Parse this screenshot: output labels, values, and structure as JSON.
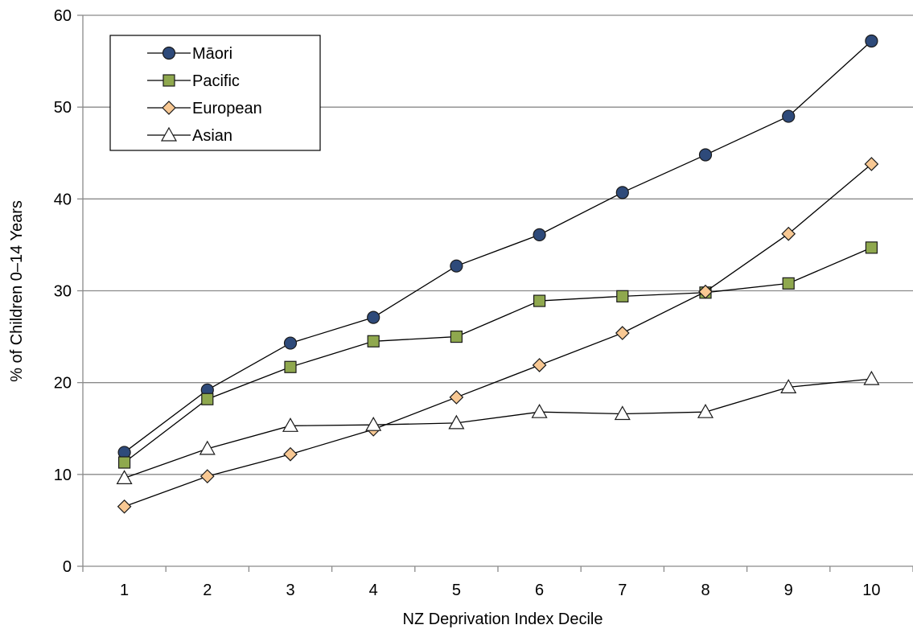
{
  "chart_data": {
    "type": "line",
    "title": "",
    "xlabel": "NZ Deprivation Index Decile",
    "ylabel": "% of Children 0–14 Years",
    "categories": [
      "1",
      "2",
      "3",
      "4",
      "5",
      "6",
      "7",
      "8",
      "9",
      "10"
    ],
    "ylim": [
      0,
      60
    ],
    "yticks": [
      0,
      10,
      20,
      30,
      40,
      50,
      60
    ],
    "grid": "horizontal",
    "legend_position": "top-left",
    "series": [
      {
        "name": "Māori",
        "marker": "circle",
        "color": "#2e4a7a",
        "values": [
          12.4,
          19.2,
          24.3,
          27.1,
          32.7,
          36.1,
          40.7,
          44.8,
          49.0,
          57.2
        ]
      },
      {
        "name": "Pacific",
        "marker": "square",
        "color": "#8fa84e",
        "values": [
          11.3,
          18.2,
          21.7,
          24.5,
          25.0,
          28.9,
          29.4,
          29.8,
          30.8,
          34.7
        ]
      },
      {
        "name": "European",
        "marker": "diamond",
        "color": "#f8c893",
        "values": [
          6.5,
          9.8,
          12.2,
          14.9,
          18.4,
          21.9,
          25.4,
          29.9,
          36.2,
          43.8
        ]
      },
      {
        "name": "Asian",
        "marker": "triangle",
        "color": "#ffffff",
        "values": [
          9.6,
          12.8,
          15.3,
          15.4,
          15.6,
          16.8,
          16.6,
          16.8,
          19.5,
          20.4
        ]
      }
    ]
  }
}
